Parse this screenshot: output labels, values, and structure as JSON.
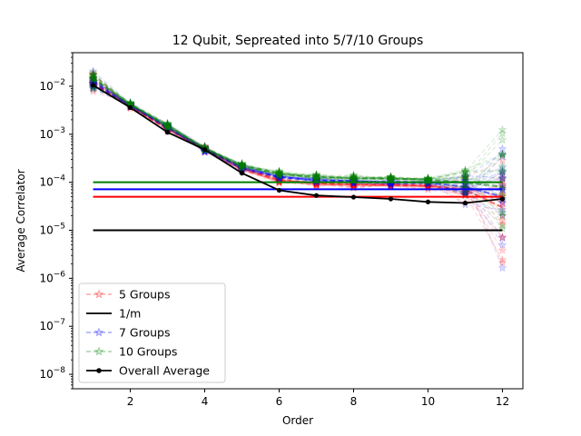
{
  "chart_data": {
    "type": "line",
    "title": "12 Qubit, Sepreated into 5/7/10 Groups",
    "xlabel": "Order",
    "ylabel": "Average Correlator",
    "yscale": "log",
    "xlim": [
      0.45,
      12.55
    ],
    "ylim": [
      5e-09,
      0.05
    ],
    "xticks": [
      2,
      4,
      6,
      8,
      10,
      12
    ],
    "xtick_labels": [
      "2",
      "4",
      "6",
      "8",
      "10",
      "12"
    ],
    "yticks": [
      1e-08,
      1e-07,
      1e-06,
      1e-05,
      0.0001,
      0.001,
      0.01
    ],
    "ytick_labels": [
      {
        "base": "10",
        "exp": "−8"
      },
      {
        "base": "10",
        "exp": "−7"
      },
      {
        "base": "10",
        "exp": "−6"
      },
      {
        "base": "10",
        "exp": "−5"
      },
      {
        "base": "10",
        "exp": "−4"
      },
      {
        "base": "10",
        "exp": "−3"
      },
      {
        "base": "10",
        "exp": "−2"
      }
    ],
    "grid": false,
    "legend_position": "lower-left",
    "x": [
      1,
      2,
      3,
      4,
      5,
      6,
      7,
      8,
      9,
      10,
      11,
      12
    ],
    "series": [
      {
        "name": "5 Groups",
        "color": "#ff0000",
        "style": "dashed-star-translucent",
        "values": [
          0.012,
          0.0038,
          0.0013,
          0.00048,
          0.00019,
          0.00011,
          9.5e-05,
          9e-05,
          8.8e-05,
          8.5e-05,
          7e-05,
          3e-05
        ]
      },
      {
        "name": "1/m",
        "color": "#000000",
        "style": "solid",
        "values": [
          1e-05,
          1e-05,
          1e-05,
          1e-05,
          1e-05,
          1e-05,
          1e-05,
          1e-05,
          1e-05,
          1e-05,
          1e-05,
          1e-05
        ]
      },
      {
        "name": "7 Groups",
        "color": "#0000ff",
        "style": "dashed-star-translucent",
        "values": [
          0.013,
          0.004,
          0.0014,
          0.0005,
          0.0002,
          0.00013,
          0.00011,
          0.000105,
          0.0001,
          0.0001,
          8e-05,
          5e-05
        ]
      },
      {
        "name": "10 Groups",
        "color": "#008000",
        "style": "dashed-star-translucent",
        "values": [
          0.015,
          0.0042,
          0.0015,
          0.00052,
          0.00022,
          0.00015,
          0.00013,
          0.00012,
          0.00012,
          0.000115,
          0.0001,
          8e-05
        ]
      },
      {
        "name": "Overall Average",
        "color": "#000000",
        "style": "solid-dot",
        "values": [
          0.0105,
          0.0036,
          0.0011,
          0.00048,
          0.000155,
          6.8e-05,
          5.3e-05,
          4.9e-05,
          4.5e-05,
          3.9e-05,
          3.7e-05,
          4.5e-05
        ]
      }
    ],
    "reference_lines": [
      {
        "color": "#008000",
        "value": 0.0001
      },
      {
        "color": "#0000ff",
        "value": 7.14e-05
      },
      {
        "color": "#ff0000",
        "value": 5e-05
      },
      {
        "color": "#000000",
        "value": 1e-05
      }
    ],
    "legend": [
      {
        "label": "5 Groups",
        "color": "#ff0000",
        "style": "dashed-star"
      },
      {
        "label": "1/m",
        "color": "#000000",
        "style": "solid"
      },
      {
        "label": "7 Groups",
        "color": "#0000ff",
        "style": "dashed-star"
      },
      {
        "label": "10 Groups",
        "color": "#008000",
        "style": "dashed-star"
      },
      {
        "label": "Overall Average",
        "color": "#000000",
        "style": "solid-dot"
      }
    ]
  }
}
